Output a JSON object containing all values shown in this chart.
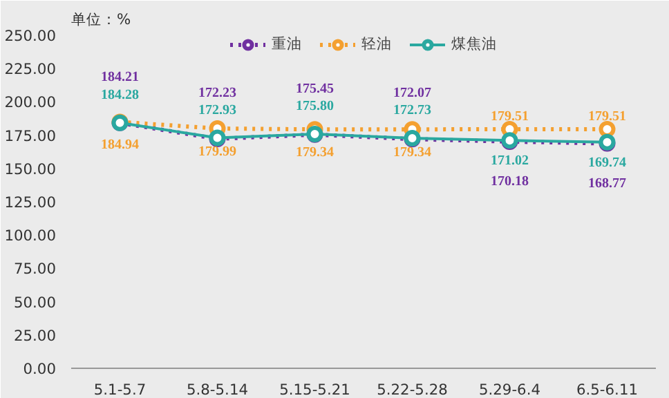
{
  "chart_data": {
    "type": "line",
    "ylabel": "单位：%",
    "categories": [
      "5.1-5.7",
      "5.8-5.14",
      "5.15-5.21",
      "5.22-5.28",
      "5.29-6.4",
      "6.5-6.11"
    ],
    "ylim": [
      0,
      250
    ],
    "yticks": [
      {
        "value": 0,
        "label": "0.00"
      },
      {
        "value": 25,
        "label": "25.00"
      },
      {
        "value": 50,
        "label": "50.00"
      },
      {
        "value": 75,
        "label": "75.00"
      },
      {
        "value": 100,
        "label": "100.00"
      },
      {
        "value": 125,
        "label": "125.00"
      },
      {
        "value": 150,
        "label": "150.00"
      },
      {
        "value": 175,
        "label": "175.00"
      },
      {
        "value": 200,
        "label": "200.00"
      },
      {
        "value": 225,
        "label": "225.00"
      },
      {
        "value": 250,
        "label": "250.00"
      }
    ],
    "series": [
      {
        "name": "重油",
        "color": "#7030a0",
        "line_style": "dotted",
        "values": [
          184.21,
          172.23,
          175.45,
          172.07,
          170.18,
          168.77
        ],
        "value_labels": [
          "184.21",
          "172.23",
          "175.45",
          "172.07",
          "170.18",
          "168.77"
        ]
      },
      {
        "name": "轻油",
        "color": "#f4a030",
        "line_style": "dotted",
        "values": [
          184.94,
          179.99,
          179.34,
          179.34,
          179.51,
          179.51
        ],
        "value_labels": [
          "184.94",
          "179.99",
          "179.34",
          "179.34",
          "179.51",
          "179.51"
        ]
      },
      {
        "name": "煤焦油",
        "color": "#2aa8a0",
        "line_style": "solid",
        "values": [
          184.28,
          172.93,
          175.8,
          172.73,
          171.02,
          169.74
        ],
        "value_labels": [
          "184.28",
          "172.93",
          "175.80",
          "172.73",
          "171.02",
          "169.74"
        ]
      }
    ],
    "marker": "circle",
    "legend": "top",
    "grid": false
  }
}
